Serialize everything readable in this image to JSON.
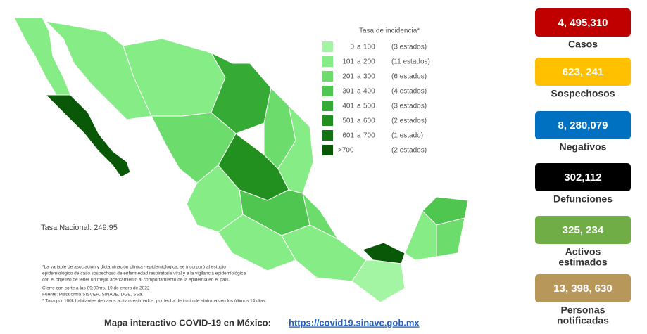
{
  "legend": {
    "title": "Tasa de incidencia*",
    "rows": [
      {
        "from": "0",
        "to": "100",
        "count": "(3 estados)",
        "color": "#a3f5a3"
      },
      {
        "from": "101",
        "to": "200",
        "count": "(11 estados)",
        "color": "#86ec86"
      },
      {
        "from": "201",
        "to": "300",
        "count": "(6 estados)",
        "color": "#6cdc6c"
      },
      {
        "from": "301",
        "to": "400",
        "count": "(4 estados)",
        "color": "#4fc64f"
      },
      {
        "from": "401",
        "to": "500",
        "count": "(3 estados)",
        "color": "#35ab35"
      },
      {
        "from": "501",
        "to": "600",
        "count": "(2 estados)",
        "color": "#22901f"
      },
      {
        "from": "601",
        "to": "700",
        "count": "(1 estado)",
        "color": "#137313"
      },
      {
        "from": ">700",
        "to": null,
        "count": "(2 estados)",
        "color": "#085808"
      }
    ],
    "joiner": "a"
  },
  "national_rate": "Tasa Nacional: 249.95",
  "notes": [
    "*La variable de asociación y dictaminación clínica - epidemiológica, se incorporó al estudio",
    "epidemiológico de caso sospechoso de enfermedad respiratoria viral y a la vigilancia epidemiológica",
    "con el objetivo de tener un mejor acercamiento al comportamiento de la epidemia en el país.",
    "Cierre con corte a las 09:00hrs, 19 de enero de 2022",
    "Fuente: Plataforma SISVER, SINAVE, DGE, SSa.",
    "* Tasa por 100k habitantes de casos activos estimados, por fecha de inicio de síntomas en los últimos 14 días."
  ],
  "footer": {
    "text": "Mapa interactivo COVID-19 en México:",
    "link": "https://covid19.sinave.gob.mx"
  },
  "stats": [
    {
      "value": "4, 495,310",
      "label": [
        "Casos"
      ],
      "color": "#c00000"
    },
    {
      "value": "623, 241",
      "label": [
        "Sospechosos"
      ],
      "color": "#ffc000"
    },
    {
      "value": "8, 280,079",
      "label": [
        "Negativos"
      ],
      "color": "#0070c0"
    },
    {
      "value": "302,112",
      "label": [
        "Defunciones"
      ],
      "color": "#000000"
    },
    {
      "value": "325, 234",
      "label": [
        "Activos",
        "estimados"
      ],
      "color": "#70ad47"
    },
    {
      "value": "13, 398, 630",
      "label": [
        "Personas",
        "notificadas"
      ],
      "color": "#b8975a"
    }
  ]
}
